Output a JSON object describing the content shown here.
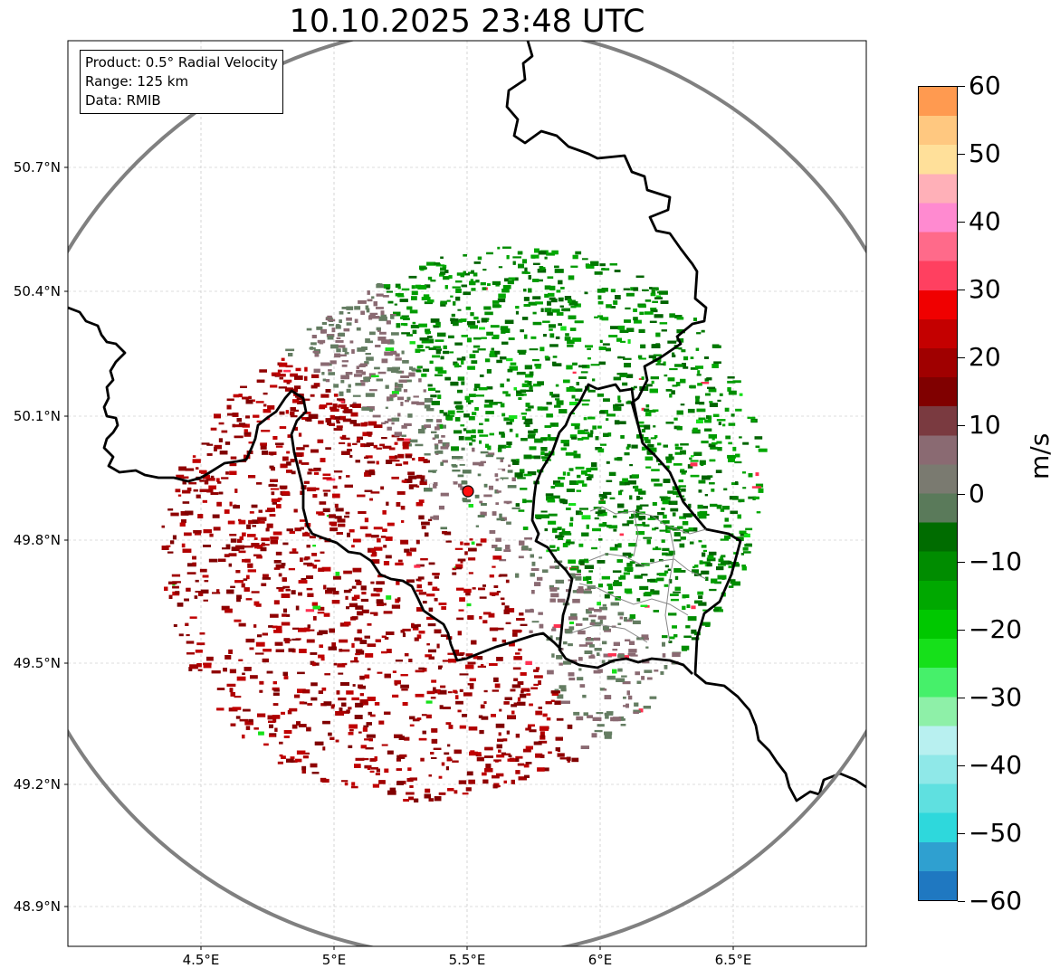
{
  "title": "10.10.2025 23:48 UTC",
  "info_box": {
    "product": "Product: 0.5° Radial Velocity",
    "range": "Range: 125 km",
    "data": "Data: RMIB"
  },
  "lat_labels": [
    "50.7°N",
    "50.4°N",
    "50.1°N",
    "49.8°N",
    "49.5°N",
    "49.2°N",
    "48.9°N"
  ],
  "lon_labels": [
    "4.5°E",
    "5°E",
    "5.5°E",
    "6°E",
    "6.5°E"
  ],
  "colorbar": {
    "unit": "m/s",
    "min": -60,
    "max": 60,
    "tick_labels": [
      "60",
      "50",
      "40",
      "30",
      "20",
      "10",
      "0",
      "−10",
      "−20",
      "−30",
      "−40",
      "−50",
      "−60"
    ],
    "tick_values": [
      60,
      50,
      40,
      30,
      20,
      10,
      0,
      -10,
      -20,
      -30,
      -40,
      -50,
      -60
    ],
    "colors": [
      "#1f78c1",
      "#2fa0d0",
      "#2ed8dc",
      "#5fe0e0",
      "#8fe8e8",
      "#b8f0f0",
      "#8ef0a8",
      "#46f06a",
      "#16e01a",
      "#00c800",
      "#00a800",
      "#008c00",
      "#006c00",
      "#5a7a5a",
      "#7a7a70",
      "#8a6a72",
      "#7a3a40",
      "#800000",
      "#a00000",
      "#c40000",
      "#f00000",
      "#ff4060",
      "#ff6a8a",
      "#ff8ad0",
      "#ffb0b8",
      "#ffe09a",
      "#ffc880",
      "#ff9a50"
    ]
  },
  "radar": {
    "site_lon": 5.506,
    "site_lat": 49.914,
    "range_km": 125
  }
}
